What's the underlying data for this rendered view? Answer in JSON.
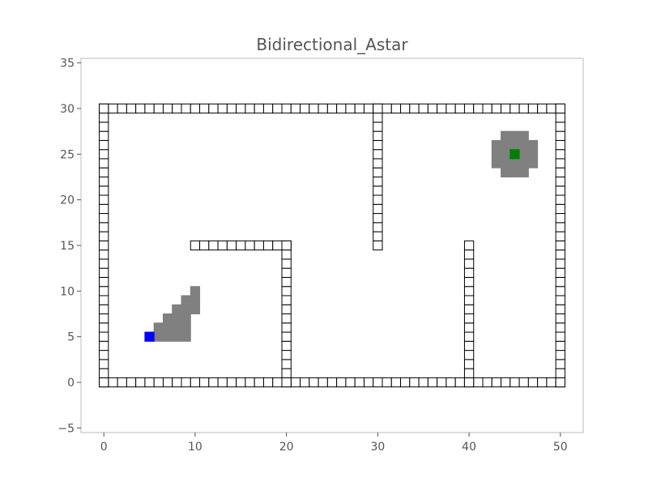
{
  "chart_data": {
    "type": "scatter",
    "title": "Bidirectional_Astar",
    "xlabel": "",
    "ylabel": "",
    "xlim": [
      -2.5,
      52.5
    ],
    "ylim": [
      -5.5,
      35.5
    ],
    "grid": false,
    "x_ticks": [
      0,
      10,
      20,
      30,
      40,
      50
    ],
    "y_ticks": [
      -5,
      0,
      5,
      10,
      15,
      20,
      25,
      30,
      35
    ],
    "x_tick_labels": [
      "0",
      "10",
      "20",
      "30",
      "40",
      "50"
    ],
    "y_tick_labels": [
      "−5",
      "0",
      "5",
      "10",
      "15",
      "20",
      "25",
      "30",
      "35"
    ],
    "colors": {
      "obstacle_edge": "#000000",
      "obstacle_fill": "#ffffff",
      "explored": "#808080",
      "start": "#0000ff",
      "goal": "#008000",
      "axes_frame": "#bbbbbb",
      "text": "#555555"
    },
    "obstacles": {
      "walls": [
        {
          "axis": "x",
          "from": 0,
          "to": 50,
          "at": 0
        },
        {
          "axis": "x",
          "from": 0,
          "to": 50,
          "at": 30
        },
        {
          "axis": "y",
          "from": 0,
          "to": 30,
          "at": 0
        },
        {
          "axis": "y",
          "from": 0,
          "to": 30,
          "at": 50
        },
        {
          "axis": "x",
          "from": 10,
          "to": 20,
          "at": 15
        },
        {
          "axis": "y",
          "from": 0,
          "to": 15,
          "at": 20
        },
        {
          "axis": "y",
          "from": 15,
          "to": 30,
          "at": 30
        },
        {
          "axis": "y",
          "from": 0,
          "to": 15,
          "at": 40
        }
      ]
    },
    "explored_forward": [
      [
        6,
        5
      ],
      [
        7,
        5
      ],
      [
        8,
        5
      ],
      [
        9,
        5
      ],
      [
        6,
        6
      ],
      [
        7,
        6
      ],
      [
        8,
        6
      ],
      [
        9,
        6
      ],
      [
        7,
        7
      ],
      [
        8,
        7
      ],
      [
        9,
        7
      ],
      [
        8,
        8
      ],
      [
        9,
        8
      ],
      [
        10,
        8
      ],
      [
        9,
        9
      ],
      [
        10,
        9
      ],
      [
        10,
        10
      ]
    ],
    "explored_backward": [
      [
        44,
        23
      ],
      [
        45,
        23
      ],
      [
        46,
        23
      ],
      [
        43,
        24
      ],
      [
        44,
        24
      ],
      [
        45,
        24
      ],
      [
        46,
        24
      ],
      [
        47,
        24
      ],
      [
        43,
        25
      ],
      [
        44,
        25
      ],
      [
        46,
        25
      ],
      [
        47,
        25
      ],
      [
        43,
        26
      ],
      [
        44,
        26
      ],
      [
        45,
        26
      ],
      [
        46,
        26
      ],
      [
        47,
        26
      ],
      [
        44,
        27
      ],
      [
        45,
        27
      ],
      [
        46,
        27
      ]
    ],
    "start": [
      5,
      5
    ],
    "goal": [
      45,
      25
    ]
  }
}
